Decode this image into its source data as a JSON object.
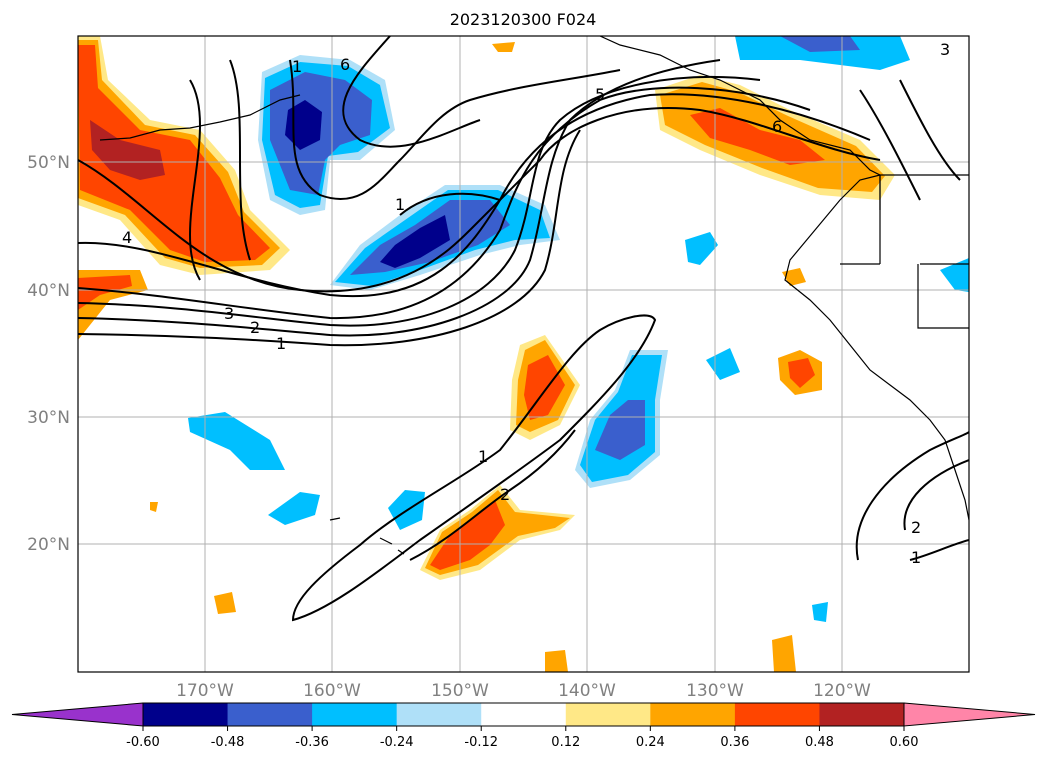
{
  "title": "2023120300 F024",
  "lat_labels": [
    "50°N",
    "40°N",
    "30°N",
    "20°N"
  ],
  "lon_labels": [
    "170°W",
    "160°W",
    "150°W",
    "140°W",
    "130°W",
    "120°W"
  ],
  "colorbar": {
    "ticks": [
      "-0.60",
      "-0.48",
      "-0.36",
      "-0.24",
      "-0.12",
      "0.12",
      "0.24",
      "0.36",
      "0.48",
      "0.60"
    ],
    "colors": [
      "#9932cc",
      "#00008b",
      "#3a5fcd",
      "#00bfff",
      "#afe0f8",
      "#ffffff",
      "#ffe887",
      "#ffa500",
      "#ff4500",
      "#b22222",
      "#ff85a8"
    ]
  },
  "contour_labels": [
    "1",
    "6",
    "5",
    "6",
    "1",
    "4",
    "3",
    "2",
    "1",
    "1",
    "2",
    "3",
    "2",
    "1"
  ]
}
